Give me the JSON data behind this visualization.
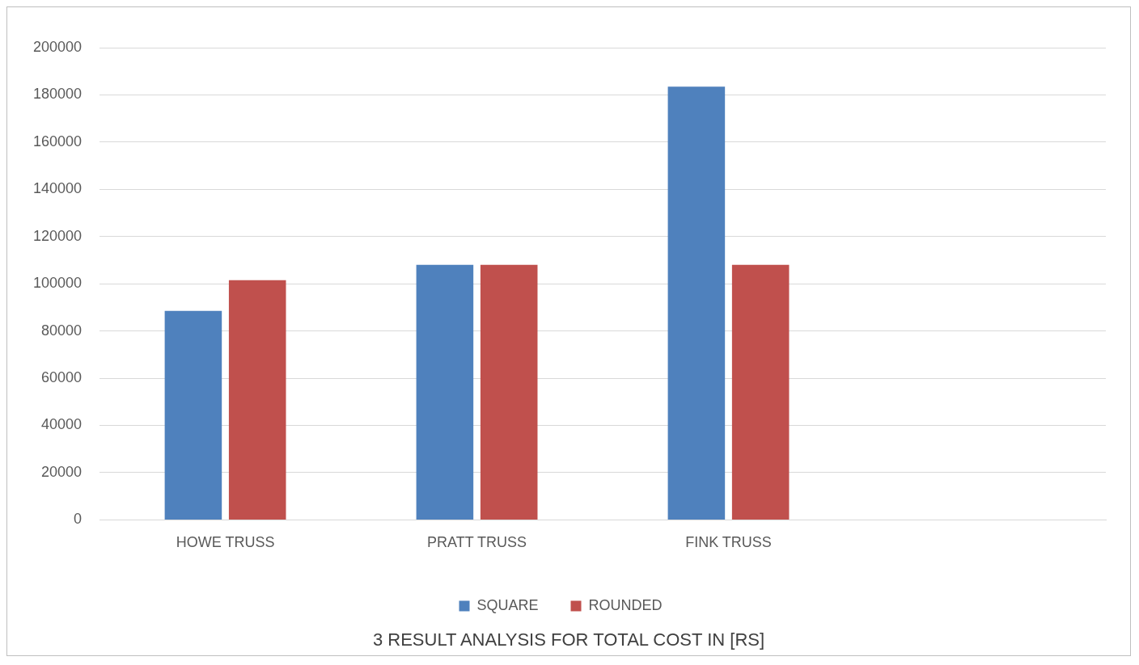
{
  "chart_data": {
    "type": "bar",
    "categories": [
      "HOWE TRUSS",
      "PRATT TRUSS",
      "FINK TRUSS",
      null
    ],
    "series": [
      {
        "name": "SQUARE",
        "color": "#4f81bd",
        "values": [
          88500,
          108000,
          183500,
          null
        ]
      },
      {
        "name": "ROUNDED",
        "color": "#c0504d",
        "values": [
          101500,
          108000,
          108000,
          null
        ]
      }
    ],
    "ylim": [
      0,
      200000
    ],
    "yticks": [
      0,
      20000,
      40000,
      60000,
      80000,
      100000,
      120000,
      140000,
      160000,
      180000,
      200000
    ],
    "grid": "y",
    "legend": "bottom",
    "annotations": [
      "3 RESULT ANALYSIS FOR TOTAL COST IN [RS]"
    ]
  }
}
